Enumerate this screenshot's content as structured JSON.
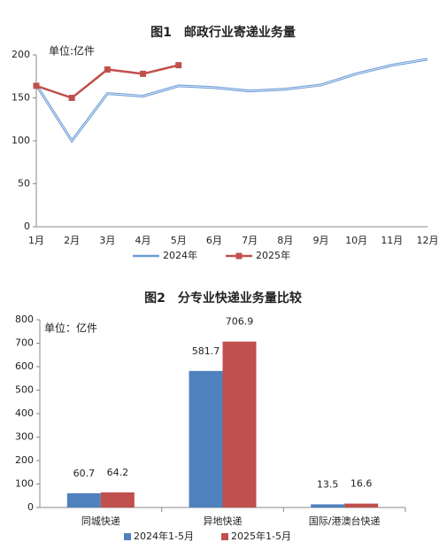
{
  "chart_data": [
    {
      "type": "line",
      "title": "图1　邮政行业寄递业务量",
      "unit": "单位:亿件",
      "categories": [
        "1月",
        "2月",
        "3月",
        "4月",
        "5月",
        "6月",
        "7月",
        "8月",
        "9月",
        "10月",
        "11月",
        "12月"
      ],
      "series": [
        {
          "name": "2024年",
          "color": "#6b9bd6",
          "values": [
            165,
            100,
            155,
            152,
            164,
            162,
            158,
            160,
            165,
            178,
            188,
            195
          ]
        },
        {
          "name": "2025年",
          "color": "#c0504d",
          "values": [
            164,
            150,
            183,
            178,
            188,
            null,
            null,
            null,
            null,
            null,
            null,
            null
          ]
        }
      ],
      "ylim": [
        0,
        200
      ],
      "yticks": [
        0,
        50,
        100,
        150,
        200
      ],
      "grid": false
    },
    {
      "type": "bar",
      "title": "图2　分专业快递业务量比较",
      "unit": "单位：亿件",
      "categories": [
        "同城快递",
        "异地快递",
        "国际/港澳台快递"
      ],
      "series": [
        {
          "name": "2024年1-5月",
          "color": "#4f81bd",
          "values": [
            60.7,
            581.7,
            13.5
          ]
        },
        {
          "name": "2025年1-5月",
          "color": "#c0504d",
          "values": [
            64.2,
            706.9,
            16.6
          ]
        }
      ],
      "ylim": [
        0,
        800
      ],
      "yticks": [
        0,
        100,
        200,
        300,
        400,
        500,
        600,
        700,
        800
      ],
      "grid": false
    }
  ]
}
